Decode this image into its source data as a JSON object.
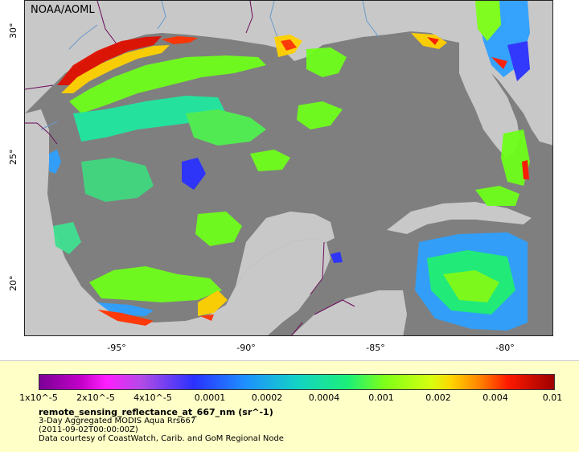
{
  "map": {
    "credit": "NOAA/AOML",
    "lat_ticks": [
      "30°",
      "25°",
      "20°"
    ],
    "lon_ticks": [
      "-95°",
      "-90°",
      "-85°",
      "-80°"
    ],
    "land_color": "#c8c8c8",
    "nodata_color": "#7f7f7f",
    "border_color": "#6a0a5a",
    "river_color": "#6a9acb"
  },
  "legend": {
    "ticks": [
      "1x10^-5",
      "2x10^-5",
      "4x10^-5",
      "0.0001",
      "0.0002",
      "0.0004",
      "0.001",
      "0.002",
      "0.004",
      "0.01"
    ],
    "title": "remote_sensing_reflectance_at_667_nm (sr^-1)",
    "line1": "3-Day Aggregated MODIS Aqua Rrs667",
    "line2": "(2011-09-02T00:00:00Z)",
    "line3": "Data courtesy of CoastWatch, Carib. and GoM Regional Node"
  }
}
